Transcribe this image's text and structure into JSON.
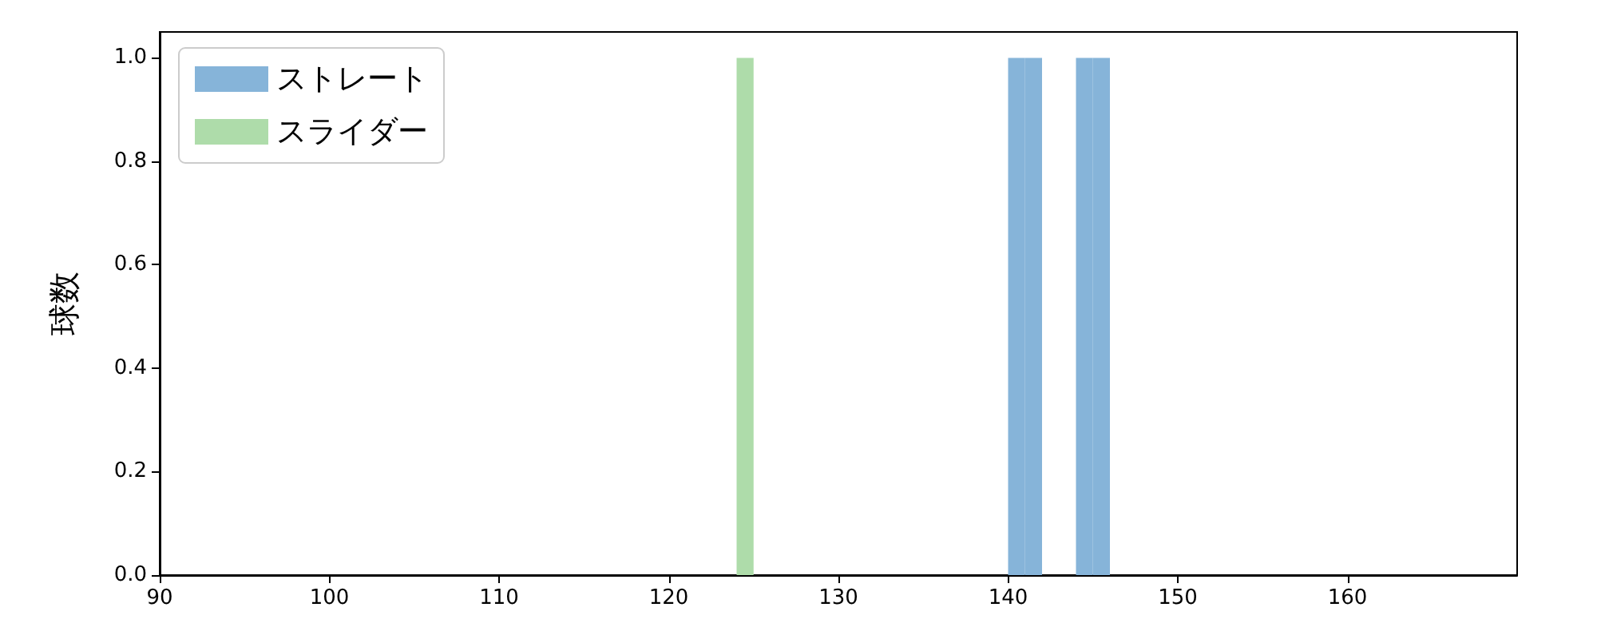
{
  "chart_data": {
    "type": "histogram",
    "ylabel": "球数",
    "series": [
      {
        "name": "ストレート",
        "color": "#86b4d9",
        "values": [
          0,
          0,
          0,
          0,
          0,
          0,
          0,
          0,
          0,
          0,
          0,
          0,
          0,
          0,
          0,
          0,
          1,
          1,
          0,
          0,
          1,
          1
        ]
      },
      {
        "name": "スライダー",
        "color": "#aedcaa",
        "values": [
          1,
          0,
          0,
          0,
          0,
          0,
          0,
          0,
          0,
          0,
          0,
          0,
          0,
          0,
          0,
          0,
          0,
          0,
          0,
          0,
          0,
          0
        ]
      }
    ],
    "bins": [
      124,
      125,
      126,
      127,
      128,
      129,
      130,
      131,
      132,
      133,
      134,
      135,
      136,
      137,
      138,
      139,
      140,
      141,
      142,
      143,
      144,
      145,
      146
    ],
    "xlim": [
      90,
      170
    ],
    "xticks": [
      90,
      100,
      110,
      120,
      130,
      140,
      150,
      160
    ],
    "ylim": [
      0,
      1.05
    ],
    "yticks": [
      {
        "value": 0,
        "label": "0.0"
      },
      {
        "value": 0.2,
        "label": "0.2"
      },
      {
        "value": 0.4,
        "label": "0.4"
      },
      {
        "value": 0.6,
        "label": "0.6"
      },
      {
        "value": 0.8,
        "label": "0.8"
      },
      {
        "value": 1,
        "label": "1.0"
      }
    ],
    "grid": false,
    "legend": "top left"
  }
}
